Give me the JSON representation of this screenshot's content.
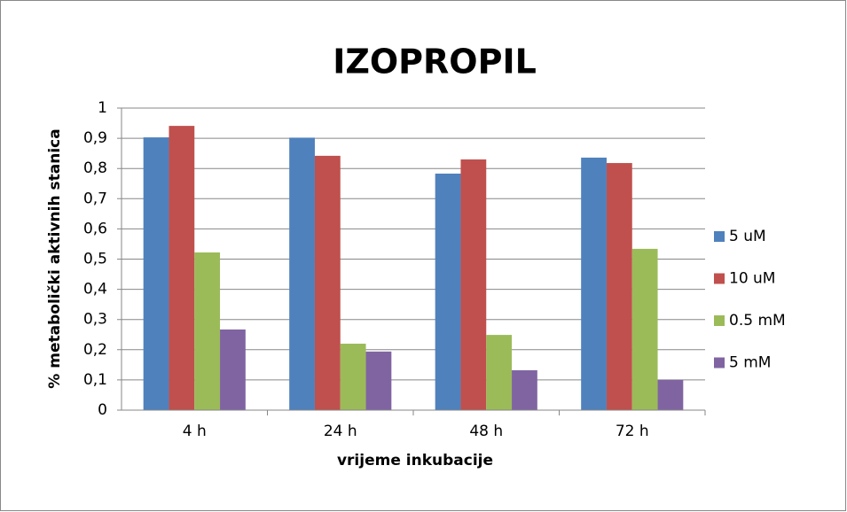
{
  "chart_data": {
    "type": "bar",
    "title": "IZOPROPIL",
    "x_label": "vrijeme inkubacije",
    "y_label": "% metabolički aktivnih stanica",
    "categories": [
      "4 h",
      "24 h",
      "48 h",
      "72 h"
    ],
    "series": [
      {
        "name": "5 uM",
        "color": "#4f81bd",
        "values": [
          0.903,
          0.902,
          0.783,
          0.836
        ]
      },
      {
        "name": "10 uM",
        "color": "#c0504d",
        "values": [
          0.941,
          0.842,
          0.83,
          0.818
        ]
      },
      {
        "name": "0.5 mM",
        "color": "#9bbb59",
        "values": [
          0.522,
          0.22,
          0.249,
          0.534
        ]
      },
      {
        "name": "5 mM",
        "color": "#8064a2",
        "values": [
          0.267,
          0.194,
          0.132,
          0.1
        ]
      }
    ],
    "ylim": [
      0,
      1
    ],
    "yticks": [
      0,
      {
        "value": 0.1,
        "label": "0,1"
      },
      {
        "value": 0.2,
        "label": "0,2"
      },
      {
        "value": 0.3,
        "label": "0,3"
      },
      {
        "value": 0.4,
        "label": "0,4"
      },
      {
        "value": 0.5,
        "label": "0,5"
      },
      {
        "value": 0.6,
        "label": "0,6"
      },
      {
        "value": 0.7,
        "label": "0,7"
      },
      {
        "value": 0.8,
        "label": "0,8"
      },
      {
        "value": 0.9,
        "label": "0,9"
      },
      1
    ],
    "grid": true,
    "legend": "right"
  }
}
